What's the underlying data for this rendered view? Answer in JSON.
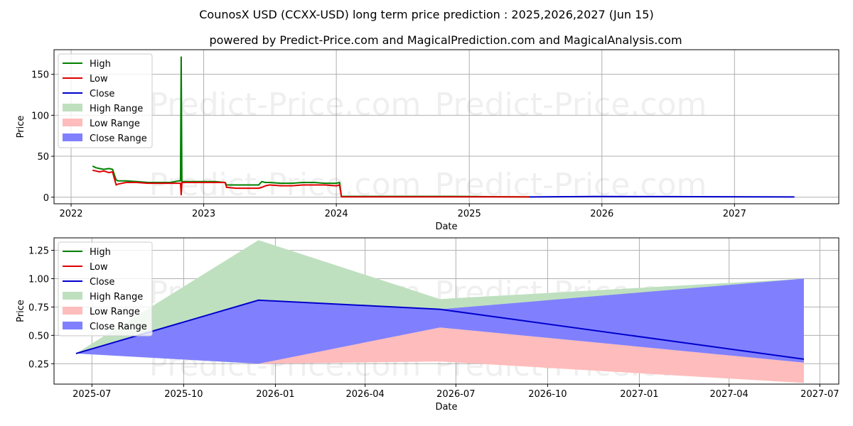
{
  "title": "CounosX USD (CCXX-USD) long term price prediction : 2025,2026,2027 (Jun 15)",
  "subtitle": "powered by Predict-Price.com and MagicalPrediction.com and MagicalAnalysis.com",
  "watermark": "Predict-Price.com",
  "colors": {
    "high": "#008000",
    "low": "#e00000",
    "close": "#0000cc",
    "high_range": "#bfe0bf",
    "low_range": "#ffbcbc",
    "close_range": "#8080ff",
    "grid": "#b0b0b0"
  },
  "chart_data": [
    {
      "type": "line",
      "xlabel": "Date",
      "ylabel": "Price",
      "xlim": [
        "2021-11-15",
        "2027-10-15"
      ],
      "ylim": [
        -8,
        180
      ],
      "x_ticks": [
        "2022",
        "2023",
        "2024",
        "2025",
        "2026",
        "2027"
      ],
      "y_ticks": [
        0,
        50,
        100,
        150
      ],
      "grid": true,
      "legend": "top-left",
      "legend_entries": [
        "High",
        "Low",
        "Close",
        "High Range",
        "Low Range",
        "Close Range"
      ],
      "series": [
        {
          "name": "High",
          "x": [
            "2022-03-01",
            "2022-03-10",
            "2022-03-20",
            "2022-04-01",
            "2022-04-15",
            "2022-04-25",
            "2022-05-05",
            "2022-05-10",
            "2022-06-01",
            "2022-07-01",
            "2022-08-01",
            "2022-09-01",
            "2022-10-01",
            "2022-10-25",
            "2022-10-29",
            "2022-10-31",
            "2022-11-02",
            "2022-11-05",
            "2022-12-01",
            "2023-01-01",
            "2023-02-01",
            "2023-03-01",
            "2023-03-05",
            "2023-04-01",
            "2023-05-01",
            "2023-06-01",
            "2023-06-10",
            "2023-06-20",
            "2023-07-01",
            "2023-08-01",
            "2023-09-01",
            "2023-10-01",
            "2023-11-01",
            "2023-12-01",
            "2024-01-01",
            "2024-01-10",
            "2024-01-15",
            "2024-02-01",
            "2024-06-01",
            "2024-10-01",
            "2025-01-01",
            "2025-04-01",
            "2025-06-15"
          ],
          "values": [
            38,
            36,
            35,
            34,
            35,
            34,
            21,
            20,
            20,
            19,
            18,
            18,
            18,
            20,
            20,
            171,
            19,
            19,
            19,
            19,
            19,
            18,
            15,
            15,
            15,
            15,
            19,
            18,
            18,
            17,
            17,
            18,
            18,
            17,
            17,
            18,
            1,
            1,
            1,
            1,
            0.9,
            0.6,
            0.4
          ]
        },
        {
          "name": "Low",
          "x": [
            "2022-03-01",
            "2022-03-10",
            "2022-03-20",
            "2022-04-01",
            "2022-04-15",
            "2022-04-25",
            "2022-05-05",
            "2022-05-10",
            "2022-06-01",
            "2022-07-01",
            "2022-08-01",
            "2022-09-01",
            "2022-10-01",
            "2022-10-29",
            "2022-10-31",
            "2022-11-02",
            "2022-12-01",
            "2023-01-01",
            "2023-02-01",
            "2023-03-01",
            "2023-03-05",
            "2023-04-01",
            "2023-05-01",
            "2023-06-01",
            "2023-06-10",
            "2023-06-20",
            "2023-07-01",
            "2023-08-01",
            "2023-09-01",
            "2023-10-01",
            "2023-11-01",
            "2023-12-01",
            "2024-01-01",
            "2024-01-10",
            "2024-01-15",
            "2024-02-01",
            "2024-06-01",
            "2024-10-01",
            "2025-01-01",
            "2025-04-01",
            "2025-06-15"
          ],
          "values": [
            33,
            32,
            31,
            32,
            30,
            31,
            15,
            16,
            18,
            18,
            17,
            17,
            17,
            17,
            3,
            18,
            18,
            18,
            18,
            18,
            12,
            11,
            11,
            11,
            12,
            14,
            15,
            14,
            14,
            15,
            15,
            15,
            14,
            15,
            0.5,
            0.5,
            0.5,
            0.5,
            0.5,
            0.4,
            0.3
          ]
        },
        {
          "name": "Close",
          "x": [
            "2025-06-15",
            "2025-12-15",
            "2026-06-15",
            "2027-06-15"
          ],
          "values": [
            0.34,
            0.81,
            0.73,
            0.29
          ]
        }
      ]
    },
    {
      "type": "area",
      "xlabel": "Date",
      "ylabel": "Price",
      "xlim": [
        "2025-05-24",
        "2027-07-20"
      ],
      "ylim": [
        0.07,
        1.36
      ],
      "x_ticks": [
        "2025-07",
        "2025-10",
        "2026-01",
        "2026-04",
        "2026-07",
        "2026-10",
        "2027-01",
        "2027-04",
        "2027-07"
      ],
      "y_ticks": [
        "0.25",
        "0.50",
        "0.75",
        "1.00",
        "1.25"
      ],
      "grid": true,
      "legend": "top-left",
      "legend_entries": [
        "High",
        "Low",
        "Close",
        "High Range",
        "Low Range",
        "Close Range"
      ],
      "x": [
        "2025-06-15",
        "2025-12-15",
        "2026-06-15",
        "2027-06-15"
      ],
      "series": [
        {
          "name": "High",
          "values": [
            0.34,
            1.34,
            0.82,
            1.0
          ]
        },
        {
          "name": "Low",
          "values": [
            0.34,
            0.25,
            0.27,
            0.08
          ]
        },
        {
          "name": "Close",
          "values": [
            0.34,
            0.81,
            0.73,
            0.29
          ]
        },
        {
          "name": "High Range",
          "lower": [
            0.34,
            0.25,
            0.57,
            0.26
          ],
          "upper": [
            0.34,
            1.34,
            0.82,
            1.0
          ]
        },
        {
          "name": "Low Range",
          "lower": [
            0.34,
            0.25,
            0.27,
            0.08
          ],
          "upper": [
            0.34,
            0.25,
            0.57,
            0.26
          ]
        },
        {
          "name": "Close Range",
          "lower": [
            0.34,
            0.25,
            0.57,
            0.26
          ],
          "upper": [
            0.34,
            0.81,
            0.73,
            1.0
          ]
        }
      ]
    }
  ]
}
